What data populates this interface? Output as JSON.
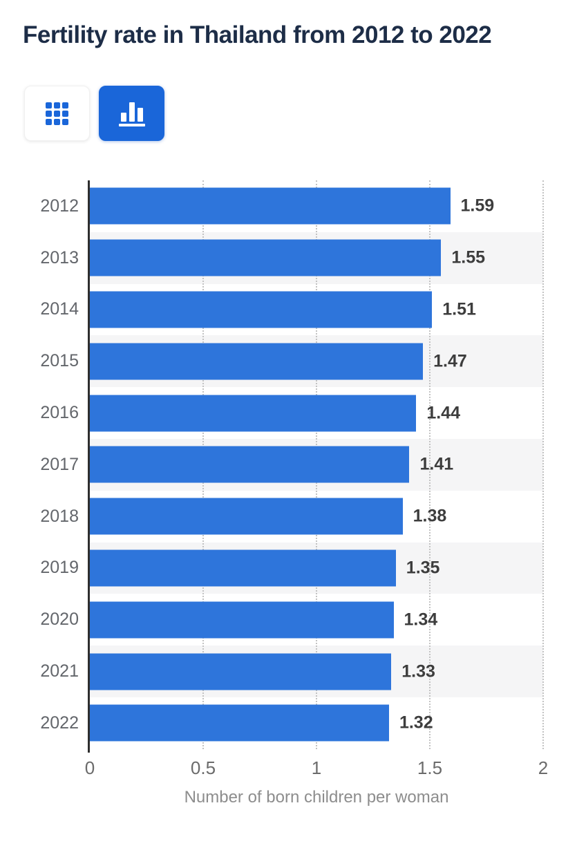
{
  "header": {
    "title": "Fertility rate in Thailand from 2012 to 2022"
  },
  "toolbar": {
    "table_view_icon": "grid-icon",
    "chart_view_icon": "bar-chart-icon",
    "active_view": "chart"
  },
  "chart_data": {
    "type": "bar",
    "orientation": "horizontal",
    "title": "Fertility rate in Thailand from 2012 to 2022",
    "categories": [
      "2012",
      "2013",
      "2014",
      "2015",
      "2016",
      "2017",
      "2018",
      "2019",
      "2020",
      "2021",
      "2022"
    ],
    "values": [
      1.59,
      1.55,
      1.51,
      1.47,
      1.44,
      1.41,
      1.38,
      1.35,
      1.34,
      1.33,
      1.32
    ],
    "value_labels": [
      "1.59",
      "1.55",
      "1.51",
      "1.47",
      "1.44",
      "1.41",
      "1.38",
      "1.35",
      "1.34",
      "1.33",
      "1.32"
    ],
    "xlabel": "Number of born children per woman",
    "xlim": [
      0,
      2
    ],
    "xticks": [
      0,
      0.5,
      1,
      1.5,
      2
    ],
    "xtick_labels": [
      "0",
      "0.5",
      "1",
      "1.5",
      "2"
    ],
    "grid": "dotted-vertical",
    "legend": "none",
    "bar_color": "#2e75db",
    "stripe_color": "#f5f5f6",
    "striped_row_indices": [
      1,
      3,
      5,
      7,
      9
    ]
  },
  "colors": {
    "title": "#1d2d47",
    "accent_blue": "#1a66d9",
    "bar_blue": "#2e75db",
    "axis_line": "#2e2e2e",
    "tick_text": "#6b6b6b",
    "category_text": "#63666b",
    "value_text": "#3d3d3d"
  }
}
